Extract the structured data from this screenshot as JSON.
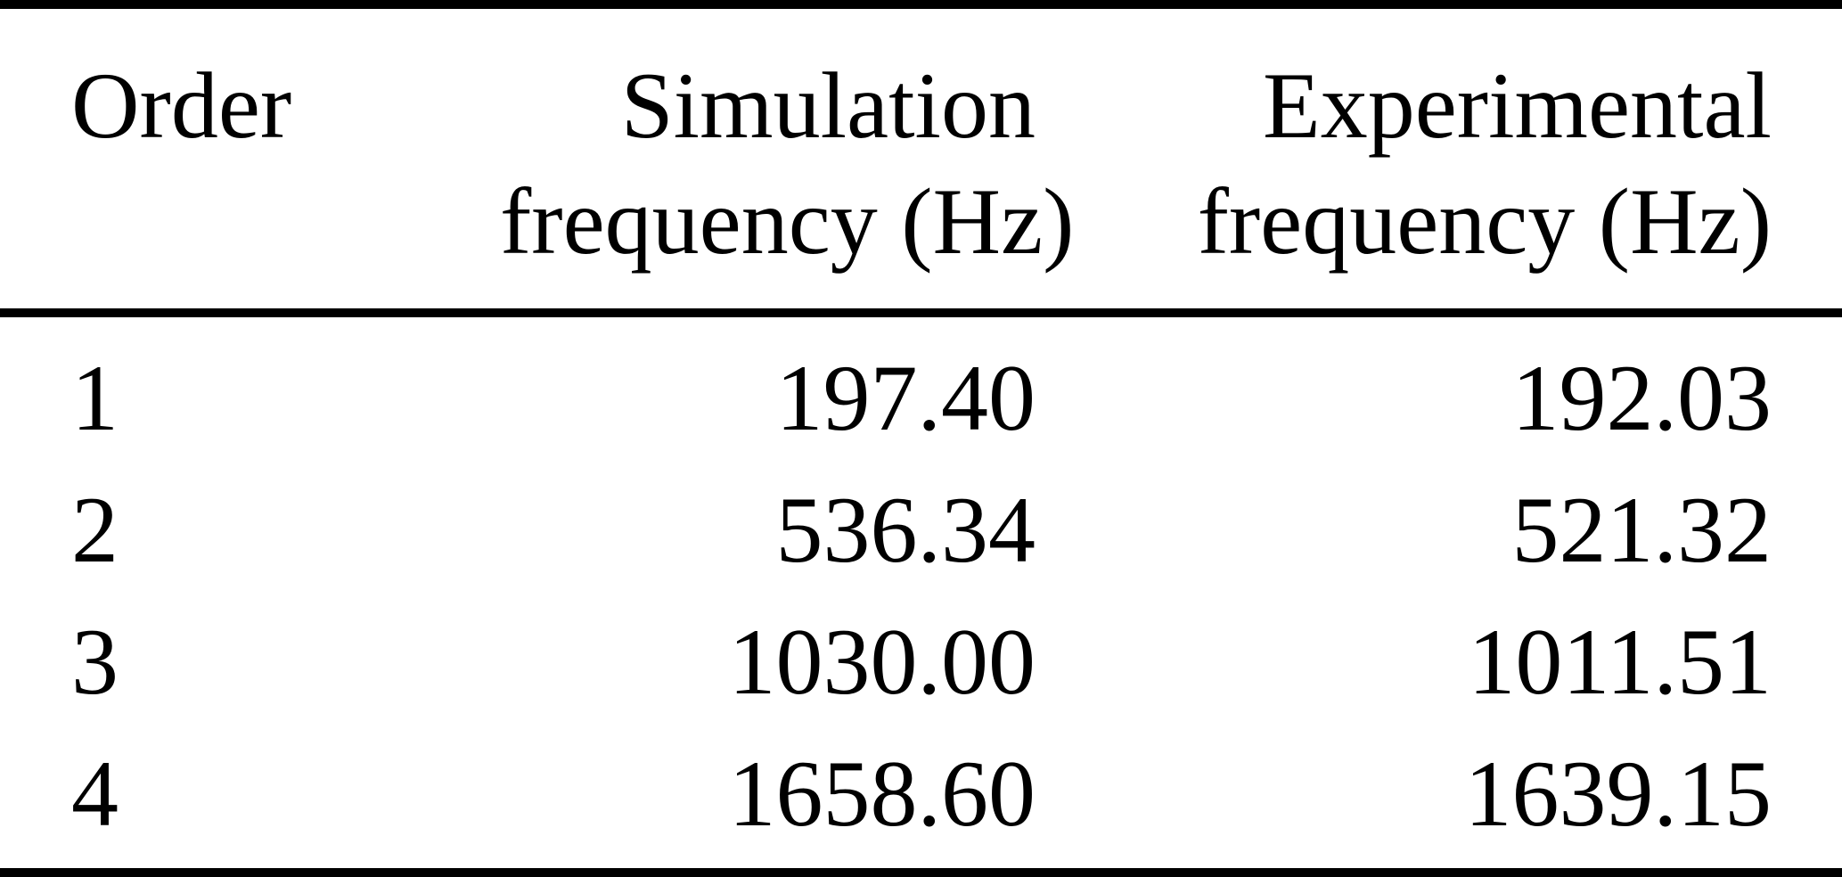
{
  "table": {
    "columns": [
      {
        "id": "order",
        "line1": "Order",
        "line2": ""
      },
      {
        "id": "simulation",
        "line1": "Simulation",
        "line2": "frequency (Hz)"
      },
      {
        "id": "experimental",
        "line1": "Experimental",
        "line2": "frequency (Hz)"
      }
    ],
    "rows": [
      {
        "order": "1",
        "simulation": "197.40",
        "experimental": "192.03"
      },
      {
        "order": "2",
        "simulation": "536.34",
        "experimental": "521.32"
      },
      {
        "order": "3",
        "simulation": "1030.00",
        "experimental": "1011.51"
      },
      {
        "order": "4",
        "simulation": "1658.60",
        "experimental": "1639.15"
      }
    ]
  },
  "chart_data": {
    "type": "table",
    "title": "",
    "columns": [
      "Order",
      "Simulation frequency (Hz)",
      "Experimental frequency (Hz)"
    ],
    "rows": [
      [
        1,
        197.4,
        192.03
      ],
      [
        2,
        536.34,
        521.32
      ],
      [
        3,
        1030.0,
        1011.51
      ],
      [
        4,
        1658.6,
        1639.15
      ]
    ]
  },
  "colors": {
    "text": "#000000",
    "background": "#ffffff",
    "rule": "#000000"
  }
}
